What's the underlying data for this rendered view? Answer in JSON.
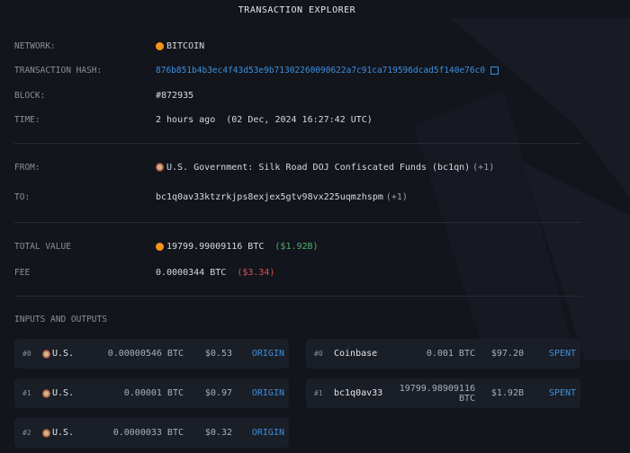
{
  "title": "TRANSACTION EXPLORER",
  "details": {
    "network": {
      "label": "NETWORK:",
      "value": "BITCOIN",
      "icon": "bitcoin-icon"
    },
    "hash": {
      "label": "TRANSACTION HASH:",
      "value": "876b851b4b3ec4f43d53e9b71302260090622a7c91ca719596dcad5f140e76c0"
    },
    "block": {
      "label": "BLOCK:",
      "value": "#872935"
    },
    "time": {
      "label": "TIME:",
      "value": "2 hours ago  (02 Dec, 2024 16:27:42 UTC)"
    },
    "from": {
      "label": "FROM:",
      "value": "U.S. Government: Silk Road DOJ Confiscated Funds (bc1qn)",
      "extra": "(+1)"
    },
    "to": {
      "label": "TO:",
      "value": "bc1q0av33ktzrkjps8exjex5gtv98vx225uqmzhspm",
      "extra": "(+1)"
    },
    "total": {
      "label": "TOTAL VALUE",
      "value": "19799.99009116 BTC",
      "usd": "($1.92B)"
    },
    "fee": {
      "label": "FEE",
      "value": "0.0000344 BTC",
      "usd": "($3.34)"
    }
  },
  "io": {
    "title": "INPUTS AND OUTPUTS",
    "inputs": [
      {
        "idx": "#0",
        "name": "U.S.",
        "amount": "0.00000546 BTC",
        "usd": "$0.53",
        "tag": "ORIGIN"
      },
      {
        "idx": "#1",
        "name": "U.S.",
        "amount": "0.00001 BTC",
        "usd": "$0.97",
        "tag": "ORIGIN"
      },
      {
        "idx": "#2",
        "name": "U.S.",
        "amount": "0.0000033 BTC",
        "usd": "$0.32",
        "tag": "ORIGIN"
      }
    ],
    "outputs": [
      {
        "idx": "#0",
        "name": "Coinbase",
        "amount": "0.001 BTC",
        "usd": "$97.20",
        "tag": "SPENT"
      },
      {
        "idx": "#1",
        "name": "bc1q0av33",
        "amount": "19799.98909116 BTC",
        "usd": "$1.92B",
        "tag": "SPENT"
      }
    ]
  },
  "colors": {
    "background": "#12151c",
    "card": "#1a1e26",
    "link": "#3d8fe0",
    "positive": "#4caf6a",
    "negative": "#e0524b",
    "bitcoin": "#f7931a"
  }
}
